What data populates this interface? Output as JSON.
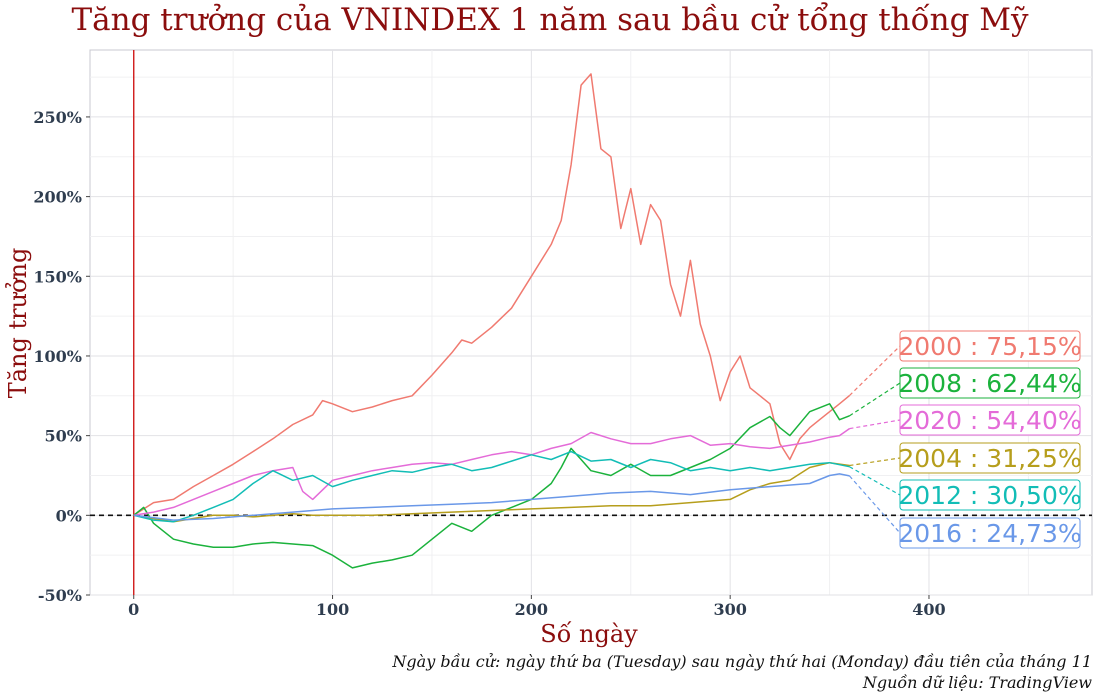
{
  "chart_data": {
    "type": "line",
    "title": "Tăng trưởng của VNINDEX 1 năm sau bầu cử tổng thống Mỹ",
    "xlabel": "Số ngày",
    "ylabel": "Tăng trưởng",
    "xlim": [
      -22,
      482
    ],
    "ylim": [
      -50,
      292
    ],
    "x_ticks": [
      0,
      100,
      200,
      300,
      400
    ],
    "x_tick_labels": [
      "0",
      "100",
      "200",
      "300",
      "400"
    ],
    "y_ticks": [
      -50,
      0,
      50,
      100,
      150,
      200,
      250
    ],
    "y_tick_labels": [
      "-50%",
      "0%",
      "50%",
      "100%",
      "150%",
      "200%",
      "250%"
    ],
    "grid": true,
    "zero_line": "dashed",
    "vline_x": 0,
    "series": [
      {
        "name": "2000",
        "label": "2000 : 75,15%",
        "color": "#f07a70",
        "x": [
          0,
          10,
          20,
          30,
          40,
          50,
          60,
          70,
          80,
          90,
          95,
          100,
          110,
          120,
          130,
          140,
          150,
          160,
          165,
          170,
          180,
          190,
          200,
          210,
          215,
          220,
          225,
          230,
          235,
          240,
          245,
          250,
          255,
          260,
          265,
          270,
          275,
          280,
          285,
          290,
          295,
          300,
          305,
          310,
          315,
          320,
          325,
          330,
          335,
          340,
          345,
          350,
          355,
          360
        ],
        "y": [
          0,
          8,
          10,
          18,
          25,
          32,
          40,
          48,
          57,
          63,
          72,
          70,
          65,
          68,
          72,
          75,
          88,
          102,
          110,
          108,
          118,
          130,
          150,
          170,
          185,
          220,
          270,
          277,
          230,
          225,
          180,
          205,
          170,
          195,
          185,
          145,
          125,
          160,
          120,
          100,
          72,
          90,
          100,
          80,
          75,
          70,
          45,
          35,
          48,
          55,
          60,
          65,
          70,
          75.15
        ]
      },
      {
        "name": "2008",
        "label": "2008 : 62,44%",
        "color": "#1bb23c",
        "x": [
          0,
          5,
          10,
          20,
          30,
          40,
          50,
          60,
          70,
          80,
          90,
          100,
          110,
          120,
          130,
          140,
          150,
          160,
          170,
          180,
          190,
          200,
          210,
          215,
          220,
          225,
          230,
          240,
          250,
          260,
          270,
          280,
          290,
          300,
          310,
          320,
          325,
          330,
          340,
          350,
          355,
          360
        ],
        "y": [
          0,
          5,
          -5,
          -15,
          -18,
          -20,
          -20,
          -18,
          -17,
          -18,
          -19,
          -25,
          -33,
          -30,
          -28,
          -25,
          -15,
          -5,
          -10,
          0,
          5,
          10,
          20,
          30,
          42,
          35,
          28,
          25,
          32,
          25,
          25,
          30,
          35,
          42,
          55,
          62,
          55,
          50,
          65,
          70,
          60,
          62.44
        ]
      },
      {
        "name": "2020",
        "label": "2020 : 54,40%",
        "color": "#e46bd8",
        "x": [
          0,
          10,
          20,
          30,
          40,
          50,
          60,
          70,
          80,
          85,
          90,
          100,
          110,
          120,
          130,
          140,
          150,
          160,
          170,
          180,
          190,
          200,
          210,
          220,
          230,
          240,
          250,
          260,
          270,
          280,
          290,
          300,
          310,
          320,
          330,
          340,
          350,
          355,
          360
        ],
        "y": [
          0,
          2,
          5,
          10,
          15,
          20,
          25,
          28,
          30,
          15,
          10,
          22,
          25,
          28,
          30,
          32,
          33,
          32,
          35,
          38,
          40,
          38,
          42,
          45,
          52,
          48,
          45,
          45,
          48,
          50,
          44,
          45,
          43,
          42,
          44,
          46,
          49,
          50,
          54.4
        ]
      },
      {
        "name": "2004",
        "label": "2004 : 31,25%",
        "color": "#b69e1c",
        "x": [
          0,
          10,
          20,
          30,
          40,
          50,
          60,
          70,
          80,
          90,
          100,
          120,
          140,
          160,
          180,
          200,
          220,
          240,
          260,
          280,
          300,
          310,
          320,
          330,
          340,
          350,
          360
        ],
        "y": [
          0,
          -2,
          -4,
          -2,
          0,
          0,
          -1,
          0,
          1,
          0,
          0,
          0,
          1,
          2,
          3,
          4,
          5,
          6,
          6,
          8,
          10,
          16,
          20,
          22,
          30,
          33,
          31.25
        ]
      },
      {
        "name": "2012",
        "label": "2012 : 30,50%",
        "color": "#12bdb6",
        "x": [
          0,
          10,
          20,
          30,
          40,
          50,
          60,
          70,
          80,
          90,
          100,
          110,
          120,
          130,
          140,
          150,
          160,
          170,
          180,
          190,
          200,
          210,
          220,
          230,
          240,
          250,
          260,
          270,
          280,
          290,
          300,
          310,
          320,
          330,
          340,
          350,
          360
        ],
        "y": [
          0,
          -3,
          -4,
          0,
          5,
          10,
          20,
          28,
          22,
          25,
          18,
          22,
          25,
          28,
          27,
          30,
          32,
          28,
          30,
          34,
          38,
          35,
          40,
          34,
          35,
          30,
          35,
          33,
          28,
          30,
          28,
          30,
          28,
          30,
          32,
          33,
          30.5
        ]
      },
      {
        "name": "2016",
        "label": "2016 : 24,73%",
        "color": "#6a98e8",
        "x": [
          0,
          20,
          40,
          60,
          80,
          100,
          120,
          140,
          160,
          180,
          200,
          220,
          240,
          260,
          280,
          300,
          320,
          340,
          350,
          355,
          360
        ],
        "y": [
          0,
          -3,
          -2,
          0,
          2,
          4,
          5,
          6,
          7,
          8,
          10,
          12,
          14,
          15,
          13,
          16,
          18,
          20,
          25,
          26,
          24.73
        ]
      }
    ]
  },
  "notes": {
    "line1": "Ngày bầu cử: ngày thứ ba (Tuesday) sau ngày thứ hai (Monday) đầu tiên của tháng 11",
    "line2": "Nguồn dữ liệu: TradingView"
  }
}
